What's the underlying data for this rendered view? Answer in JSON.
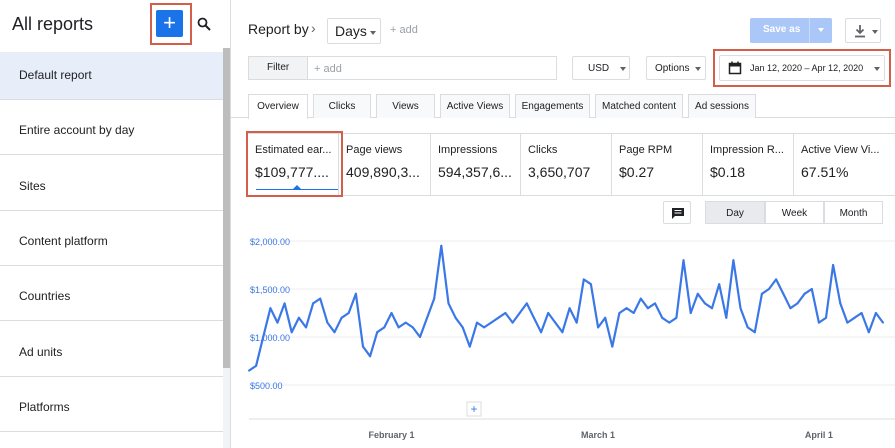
{
  "sidebar": {
    "title": "All reports",
    "add_icon": "+",
    "items": [
      {
        "label": "Default report"
      },
      {
        "label": "Entire account by day"
      },
      {
        "label": "Sites"
      },
      {
        "label": "Content platform"
      },
      {
        "label": "Countries"
      },
      {
        "label": "Ad units"
      },
      {
        "label": "Platforms"
      }
    ]
  },
  "header": {
    "report_by": "Report by",
    "dimension": "Days",
    "add": "+ add",
    "save_as": "Save as"
  },
  "filters": {
    "filter_label": "Filter",
    "placeholder": "+ add",
    "currency": "USD",
    "options": "Options",
    "date_range": "Jan 12, 2020 – Apr 12, 2020"
  },
  "tabs": [
    "Overview",
    "Clicks",
    "Views",
    "Active Views",
    "Engagements",
    "Matched content",
    "Ad sessions"
  ],
  "metrics": [
    {
      "label": "Estimated ear...",
      "value": "$109,777...."
    },
    {
      "label": "Page views",
      "value": "409,890,3..."
    },
    {
      "label": "Impressions",
      "value": "594,357,6..."
    },
    {
      "label": "Clicks",
      "value": "3,650,707"
    },
    {
      "label": "Page RPM",
      "value": "$0.27"
    },
    {
      "label": "Impression R...",
      "value": "$0.18"
    },
    {
      "label": "Active View Vi...",
      "value": "67.51%"
    }
  ],
  "granularity": {
    "day": "Day",
    "week": "Week",
    "month": "Month",
    "selected": "Day"
  },
  "colors": {
    "accent": "#1a73e8",
    "highlight": "#d35f4b",
    "line": "#3b78e7"
  },
  "chart_data": {
    "type": "line",
    "ylim": [
      500,
      2000
    ],
    "y_ticks": [
      "$2,000.00",
      "$1,500.00",
      "$1,000.00",
      "$500.00"
    ],
    "y_tick_values": [
      2000,
      1500,
      1000,
      500
    ],
    "x_ticks": [
      {
        "label": "February 1",
        "index": 20
      },
      {
        "label": "March 1",
        "index": 49
      },
      {
        "label": "April 1",
        "index": 80
      }
    ],
    "series": [
      {
        "values": [
          650,
          700,
          1000,
          1300,
          1150,
          1350,
          1050,
          1200,
          1100,
          1350,
          1400,
          1150,
          1050,
          1200,
          1250,
          1450,
          900,
          800,
          1050,
          1100,
          1250,
          1100,
          1150,
          1100,
          1000,
          1200,
          1400,
          1950,
          1350,
          1200,
          1100,
          900,
          1150,
          1100,
          1150,
          1200,
          1250,
          1150,
          1250,
          1350,
          1200,
          1050,
          1250,
          1150,
          1050,
          1300,
          1150,
          1600,
          1550,
          1100,
          1200,
          900,
          1250,
          1300,
          1250,
          1400,
          1300,
          1350,
          1200,
          1150,
          1200,
          1800,
          1250,
          1450,
          1350,
          1300,
          1550,
          1200,
          1800,
          1300,
          1100,
          1050,
          1450,
          1500,
          1600,
          1450,
          1300,
          1350,
          1450,
          1500,
          1150,
          1200,
          1750,
          1350,
          1150,
          1200,
          1250,
          1050,
          1250,
          1150
        ]
      }
    ]
  }
}
